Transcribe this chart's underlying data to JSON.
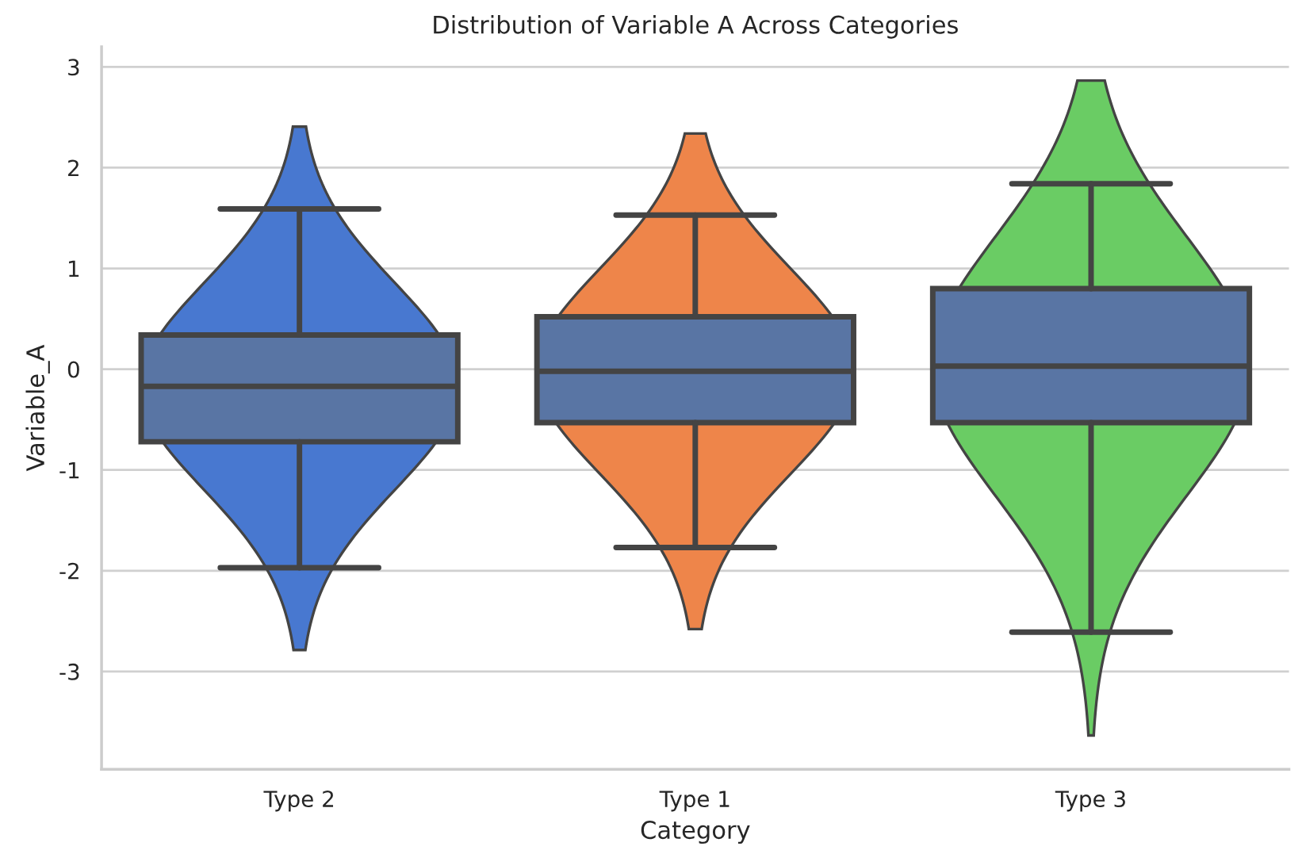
{
  "chart_data": {
    "type": "box",
    "title": "Distribution of Variable A Across Categories",
    "xlabel": "Category",
    "ylabel": "Variable_A",
    "categories": [
      "Type 2",
      "Type 1",
      "Type 3"
    ],
    "colors": [
      "#4878d0",
      "#ee854a",
      "#6acc64"
    ],
    "series": [
      {
        "color": "#5975a4",
        "boxes": [
          {
            "low": -1.97,
            "q1": -0.72,
            "median": -0.17,
            "q3": 0.34,
            "high": 1.59
          },
          {
            "low": -1.77,
            "q1": -0.53,
            "median": -0.02,
            "q3": 0.52,
            "high": 1.53
          },
          {
            "low": -2.61,
            "q1": -0.53,
            "median": 0.03,
            "q3": 0.8,
            "high": 1.84
          }
        ]
      }
    ],
    "ylim": [
      -3.97,
      3.2
    ],
    "yticks": [
      -3,
      -2,
      -1,
      0,
      1,
      2,
      3
    ],
    "grid": "y"
  }
}
